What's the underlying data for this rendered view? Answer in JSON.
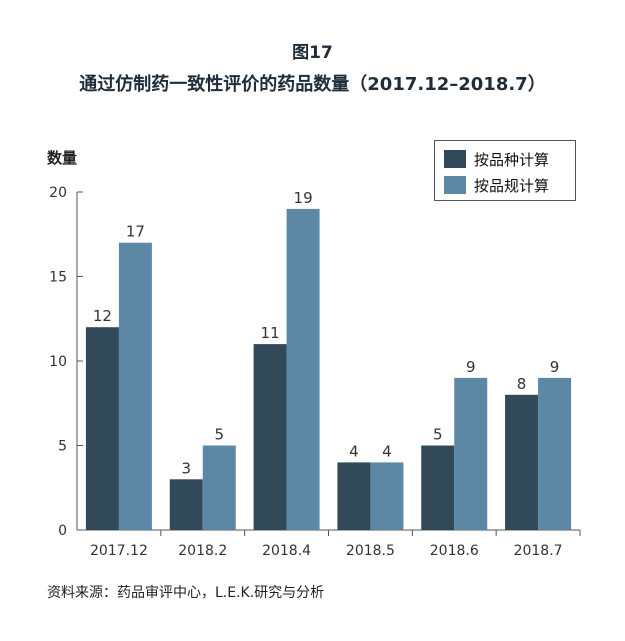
{
  "figure_label": "图17",
  "title": "通过仿制药一致性评价的药品数量（2017.12–2018.7）",
  "source": "资料来源：药品审评中心，L.E.K.研究与分析",
  "colors": {
    "series1": "#324959",
    "series2": "#5c88a5",
    "axis": "#555555"
  },
  "chart_data": {
    "type": "bar",
    "ylabel": "数量",
    "xlabel": "",
    "ylim": [
      0,
      20
    ],
    "yticks": [
      0,
      5,
      10,
      15,
      20
    ],
    "grid": false,
    "legend_position": "top-right",
    "categories": [
      "2017.12",
      "2018.2",
      "2018.4",
      "2018.5",
      "2018.6",
      "2018.7"
    ],
    "series": [
      {
        "name": "按品种计算",
        "values": [
          12,
          3,
          11,
          4,
          5,
          8
        ]
      },
      {
        "name": "按品规计算",
        "values": [
          17,
          5,
          19,
          4,
          9,
          9
        ]
      }
    ]
  }
}
